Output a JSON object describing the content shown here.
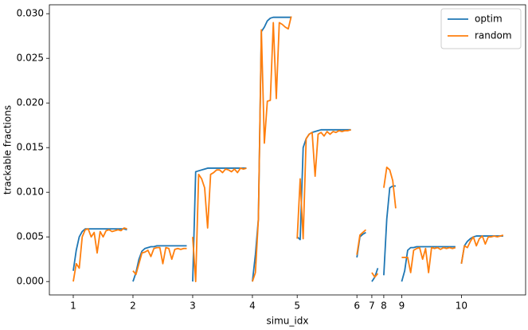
{
  "chart_data": {
    "type": "line",
    "xlabel": "simu_idx",
    "ylabel": "trackable fractions",
    "legend": "upper right",
    "x": [
      0,
      1,
      2,
      3,
      4,
      5,
      6,
      7,
      8,
      9,
      10,
      11,
      12,
      13,
      14,
      15,
      16,
      17,
      18,
      19,
      20,
      21,
      22,
      23,
      24,
      25,
      26,
      27,
      28,
      29,
      30,
      31,
      32,
      33,
      34,
      35,
      36,
      37,
      38,
      39,
      40,
      41,
      42,
      43,
      44,
      45,
      46,
      47,
      48,
      49,
      50,
      51,
      52,
      53,
      54,
      55,
      56,
      57,
      58,
      59,
      60,
      61,
      62,
      63,
      64,
      65,
      66,
      67,
      68,
      69,
      70,
      71,
      72,
      73,
      74,
      75,
      76,
      77,
      78,
      79,
      80,
      81,
      82,
      83,
      84,
      85,
      86,
      87,
      88,
      89,
      90,
      91,
      92,
      93,
      94,
      95,
      96,
      97,
      98,
      99,
      100,
      101,
      102,
      103,
      104,
      105,
      106,
      107,
      108,
      109,
      110,
      111,
      112,
      113,
      114,
      115,
      116,
      117,
      118,
      119,
      120,
      121,
      122,
      123,
      124,
      125,
      126,
      127,
      128,
      129,
      130,
      131,
      132,
      133,
      134,
      135,
      136,
      137,
      138,
      139,
      140,
      141,
      142,
      143,
      144
    ],
    "series": [
      {
        "name": "optim",
        "color": "#1f77b4",
        "values": [
          0.0012,
          0.0035,
          0.005,
          0.0056,
          0.0059,
          0.0059,
          0.0059,
          0.0059,
          0.0059,
          0.0059,
          0.0059,
          0.0059,
          0.0059,
          0.0059,
          0.0059,
          0.0059,
          0.0059,
          0.0059,
          0.0058,
          null,
          0,
          0.001,
          0.0025,
          0.0034,
          0.0037,
          0.0038,
          0.0039,
          0.0039,
          0.004,
          0.004,
          0.004,
          0.004,
          0.004,
          0.004,
          0.004,
          0.004,
          0.004,
          0.004,
          0.004,
          null,
          0,
          0.0123,
          0.0124,
          0.0125,
          0.0126,
          0.0127,
          0.0127,
          0.0127,
          0.0127,
          0.0127,
          0.0127,
          0.0127,
          0.0127,
          0.0127,
          0.0127,
          0.0127,
          0.0127,
          0.0127,
          0.0127,
          null,
          0,
          0.003,
          0.007,
          0.028,
          0.0285,
          0.0292,
          0.0295,
          0.0296,
          0.0296,
          0.0296,
          0.0296,
          0.0296,
          0.0296,
          0.0296,
          null,
          0.005,
          0.0047,
          0.015,
          0.016,
          0.0165,
          0.0167,
          0.0168,
          0.0169,
          0.017,
          0.017,
          0.017,
          0.017,
          0.017,
          0.017,
          0.017,
          0.017,
          0.017,
          0.017,
          0.017,
          null,
          0.0027,
          0.005,
          0.0053,
          0.0055,
          null,
          0,
          0.0005,
          0.0015,
          null,
          0.0007,
          0.007,
          0.0105,
          0.0107,
          0.0107,
          null,
          0,
          0.0012,
          0.0035,
          0.0038,
          0.0038,
          0.0039,
          0.0039,
          0.0039,
          0.0039,
          0.0039,
          0.0039,
          0.0039,
          0.0039,
          0.0039,
          0.0039,
          0.0039,
          0.0039,
          0.0039,
          0.0039,
          null,
          0.002,
          0.004,
          0.0045,
          0.0048,
          0.005,
          0.0051,
          0.0051,
          0.0051,
          0.0051,
          0.0051,
          0.0051,
          0.0051,
          0.0051,
          0.0051,
          0.0051
        ]
      },
      {
        "name": "random",
        "color": "#ff7f0e",
        "values": [
          0,
          0.002,
          0.0015,
          0.005,
          0.0058,
          0.0059,
          0.005,
          0.0055,
          0.0032,
          0.0056,
          0.005,
          0.0057,
          0.0058,
          0.0056,
          0.0057,
          0.0058,
          0.0057,
          0.006,
          0.0059,
          null,
          0.0012,
          0.0008,
          0.002,
          0.0032,
          0.0033,
          0.0035,
          0.0028,
          0.0037,
          0.0038,
          0.0038,
          0.002,
          0.0038,
          0.0037,
          0.0025,
          0.0036,
          0.0037,
          0.0036,
          0.0037,
          0.0037,
          null,
          0.005,
          0,
          0.012,
          0.0115,
          0.0105,
          0.006,
          0.012,
          0.0122,
          0.0125,
          0.0125,
          0.0122,
          0.0126,
          0.0125,
          0.0123,
          0.0126,
          0.0122,
          0.0127,
          0.0126,
          0.0127,
          null,
          0,
          0.001,
          0.007,
          0.0282,
          0.0155,
          0.0202,
          0.0203,
          0.029,
          0.0205,
          0.029,
          0.0288,
          0.0285,
          0.0283,
          0.0297,
          null,
          0.0048,
          0.0115,
          0.0048,
          0.016,
          0.0165,
          0.0167,
          0.0118,
          0.0165,
          0.0167,
          0.0163,
          0.0168,
          0.0165,
          0.0168,
          0.0167,
          0.0169,
          0.0168,
          0.0169,
          0.0169,
          0.017,
          null,
          0.003,
          0.0052,
          0.0055,
          0.0058,
          null,
          0.001,
          0.0005,
          0.0009,
          null,
          0.0105,
          0.0128,
          0.0125,
          0.0113,
          0.0082,
          null,
          0.0027,
          0.0027,
          0.0027,
          0.001,
          0.0035,
          0.0037,
          0.0038,
          0.0025,
          0.0037,
          0.001,
          0.0038,
          0.0037,
          0.0038,
          0.0036,
          0.0038,
          0.0037,
          0.0038,
          0.0037,
          0.0038,
          null,
          0.002,
          0.004,
          0.0038,
          0.0045,
          0.005,
          0.004,
          0.0048,
          0.0051,
          0.0042,
          0.005,
          0.005,
          0.0051,
          0.005,
          0.0051,
          0.0052
        ]
      }
    ],
    "xlim": [
      -8,
      151.5
    ],
    "xticks": [
      {
        "value": 0,
        "label": "1"
      },
      {
        "value": 20,
        "label": "2"
      },
      {
        "value": 40,
        "label": "3"
      },
      {
        "value": 60,
        "label": "4"
      },
      {
        "value": 75,
        "label": "5"
      },
      {
        "value": 95,
        "label": "6"
      },
      {
        "value": 100,
        "label": "7"
      },
      {
        "value": 104,
        "label": "8"
      },
      {
        "value": 110,
        "label": "9"
      },
      {
        "value": 130,
        "label": "10"
      }
    ],
    "ylim": [
      -0.0015,
      0.031
    ],
    "yticks": [
      {
        "value": 0,
        "label": "0.000"
      },
      {
        "value": 0.005,
        "label": "0.005"
      },
      {
        "value": 0.01,
        "label": "0.010"
      },
      {
        "value": 0.015,
        "label": "0.015"
      },
      {
        "value": 0.02,
        "label": "0.020"
      },
      {
        "value": 0.025,
        "label": "0.025"
      },
      {
        "value": 0.03,
        "label": "0.030"
      }
    ]
  }
}
